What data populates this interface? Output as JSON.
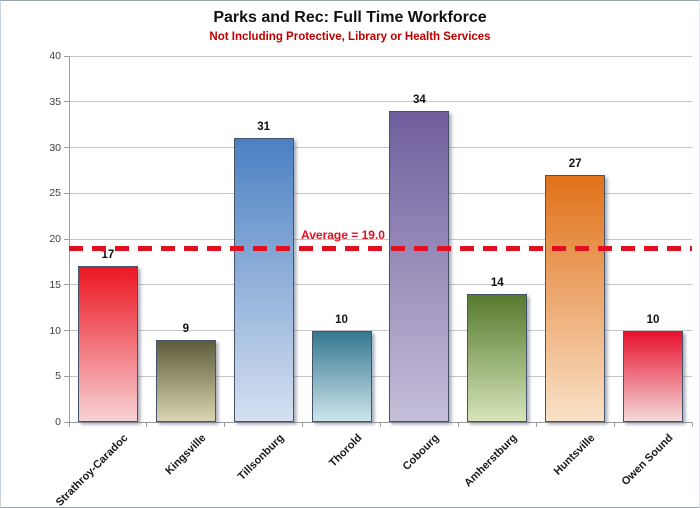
{
  "header": {
    "title": "Parks and Rec: Full Time Workforce",
    "subtitle": "Not Including Protective, Library or Health Services",
    "subtitle_color": "#c00000"
  },
  "chart_data": {
    "type": "bar",
    "title": "Parks and Rec: Full Time Workforce",
    "subtitle": "Not Including Protective, Library or Health Services",
    "categories": [
      "Strathroy-Caradoc",
      "Kingsville",
      "Tillsonburg",
      "Thorold",
      "Cobourg",
      "Amherstburg",
      "Huntsville",
      "Owen Sound"
    ],
    "values": [
      17,
      9,
      31,
      10,
      34,
      14,
      27,
      10
    ],
    "bar_gradients": [
      {
        "top": "#ec1623",
        "bottom": "#f7d2d4"
      },
      {
        "top": "#5d5c3b",
        "bottom": "#d9d5b3"
      },
      {
        "top": "#4a80c2",
        "bottom": "#d6e0f1"
      },
      {
        "top": "#35788f",
        "bottom": "#cde5ec"
      },
      {
        "top": "#6f5e9c",
        "bottom": "#c5bed9"
      },
      {
        "top": "#567a2e",
        "bottom": "#d6e4b8"
      },
      {
        "top": "#e07119",
        "bottom": "#f9e1c7"
      },
      {
        "top": "#e8112d",
        "bottom": "#f3dada"
      }
    ],
    "bar_border_color": "#44546a",
    "xlabel": "",
    "ylabel": "",
    "ylim": [
      0,
      40
    ],
    "yticks": [
      0,
      5,
      10,
      15,
      20,
      25,
      30,
      35,
      40
    ],
    "grid": true,
    "gridline_color": "#c6c6c6",
    "average_line": {
      "value": 19.0,
      "label": "Average = 19.0",
      "color": "#e01020",
      "style": "dashed"
    }
  }
}
